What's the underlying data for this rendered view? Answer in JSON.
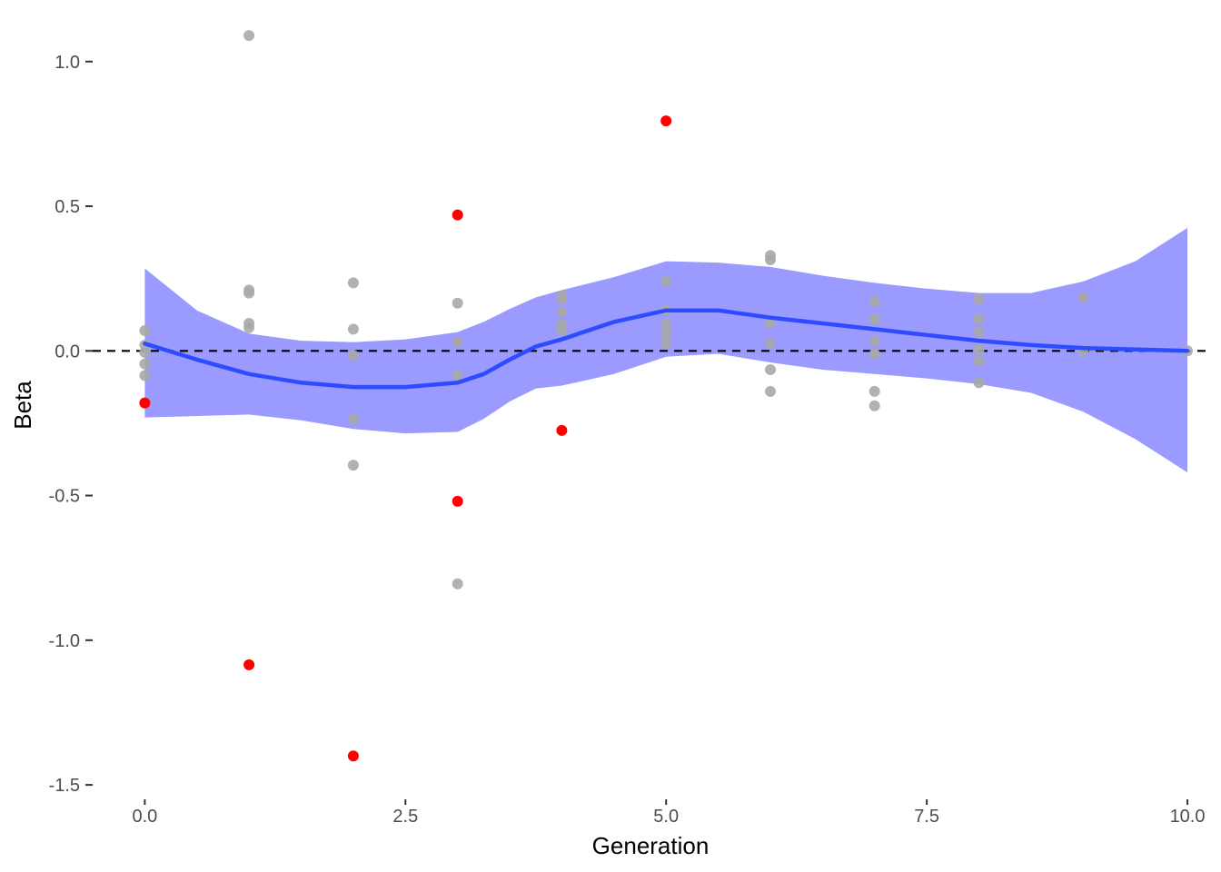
{
  "chart_data": {
    "type": "scatter",
    "xlabel": "Generation",
    "ylabel": "Beta",
    "xlim": [
      -0.5,
      10.2
    ],
    "ylim": [
      -1.55,
      1.15
    ],
    "x_ticks": [
      {
        "value": 0,
        "label": "0.0"
      },
      {
        "value": 2.5,
        "label": "2.5"
      },
      {
        "value": 5,
        "label": "5.0"
      },
      {
        "value": 7.5,
        "label": "7.5"
      },
      {
        "value": 10,
        "label": "10.0"
      }
    ],
    "y_ticks": [
      {
        "value": 1.0,
        "label": "1.0"
      },
      {
        "value": 0.5,
        "label": "0.5"
      },
      {
        "value": 0.0,
        "label": "0.0"
      },
      {
        "value": -0.5,
        "label": "-0.5"
      },
      {
        "value": -1.0,
        "label": "-1.0"
      },
      {
        "value": -1.5,
        "label": "-1.5"
      }
    ],
    "grid": false,
    "reference_line": {
      "y": 0,
      "style": "dashed",
      "color": "#000000"
    },
    "series": [
      {
        "color": "#a9a9a9",
        "points": [
          [
            0,
            0.07
          ],
          [
            0,
            0.02
          ],
          [
            0,
            -0.005
          ],
          [
            0,
            -0.045
          ],
          [
            0,
            -0.085
          ],
          [
            1,
            1.09
          ],
          [
            1,
            0.21
          ],
          [
            1,
            0.2
          ],
          [
            1,
            0.095
          ],
          [
            1,
            0.08
          ],
          [
            2,
            0.235
          ],
          [
            2,
            0.075
          ],
          [
            2,
            -0.015
          ],
          [
            2,
            -0.235
          ],
          [
            2,
            -0.395
          ],
          [
            3,
            0.165
          ],
          [
            3,
            0.03
          ],
          [
            3,
            -0.085
          ],
          [
            3,
            -0.805
          ],
          [
            4,
            0.19
          ],
          [
            4,
            0.18
          ],
          [
            4,
            0.135
          ],
          [
            4,
            0.09
          ],
          [
            4,
            0.07
          ],
          [
            5,
            0.24
          ],
          [
            5,
            0.14
          ],
          [
            5,
            0.09
          ],
          [
            5,
            0.06
          ],
          [
            5,
            0.025
          ],
          [
            6,
            0.33
          ],
          [
            6,
            0.315
          ],
          [
            6,
            0.095
          ],
          [
            6,
            0.025
          ],
          [
            6,
            -0.065
          ],
          [
            6,
            -0.14
          ],
          [
            7,
            0.17
          ],
          [
            7,
            0.11
          ],
          [
            7,
            0.035
          ],
          [
            7,
            -0.01
          ],
          [
            7,
            -0.14
          ],
          [
            7,
            -0.19
          ],
          [
            8,
            0.18
          ],
          [
            8,
            0.11
          ],
          [
            8,
            0.065
          ],
          [
            8,
            0.005
          ],
          [
            8,
            -0.035
          ],
          [
            8,
            -0.11
          ],
          [
            9,
            0.185
          ],
          [
            9,
            0.0
          ],
          [
            10,
            0.0
          ]
        ]
      },
      {
        "color": "#ff0000",
        "points": [
          [
            0,
            -0.18
          ],
          [
            1,
            -1.085
          ],
          [
            2,
            -1.4
          ],
          [
            3,
            0.47
          ],
          [
            3,
            -0.52
          ],
          [
            4,
            -0.275
          ],
          [
            5,
            0.795
          ]
        ]
      }
    ],
    "smooth": {
      "line_color": "#2d4bff",
      "band_color": "#9a9aff",
      "x": [
        0,
        0.5,
        1,
        1.5,
        2,
        2.5,
        3,
        3.25,
        3.5,
        3.75,
        4,
        4.5,
        5,
        5.5,
        6,
        6.5,
        7,
        7.5,
        8,
        8.5,
        9,
        9.5,
        10
      ],
      "fit": [
        0.025,
        -0.03,
        -0.08,
        -0.11,
        -0.125,
        -0.125,
        -0.11,
        -0.08,
        -0.03,
        0.015,
        0.04,
        0.1,
        0.14,
        0.14,
        0.115,
        0.095,
        0.075,
        0.055,
        0.035,
        0.02,
        0.01,
        0.005,
        0.0
      ],
      "upper": [
        0.285,
        0.14,
        0.06,
        0.035,
        0.03,
        0.04,
        0.065,
        0.1,
        0.145,
        0.185,
        0.21,
        0.255,
        0.31,
        0.305,
        0.29,
        0.26,
        0.235,
        0.215,
        0.2,
        0.2,
        0.24,
        0.31,
        0.425
      ],
      "lower": [
        -0.23,
        -0.225,
        -0.22,
        -0.24,
        -0.27,
        -0.285,
        -0.28,
        -0.235,
        -0.175,
        -0.13,
        -0.12,
        -0.08,
        -0.02,
        -0.01,
        -0.04,
        -0.065,
        -0.08,
        -0.095,
        -0.115,
        -0.145,
        -0.21,
        -0.305,
        -0.42
      ]
    }
  }
}
